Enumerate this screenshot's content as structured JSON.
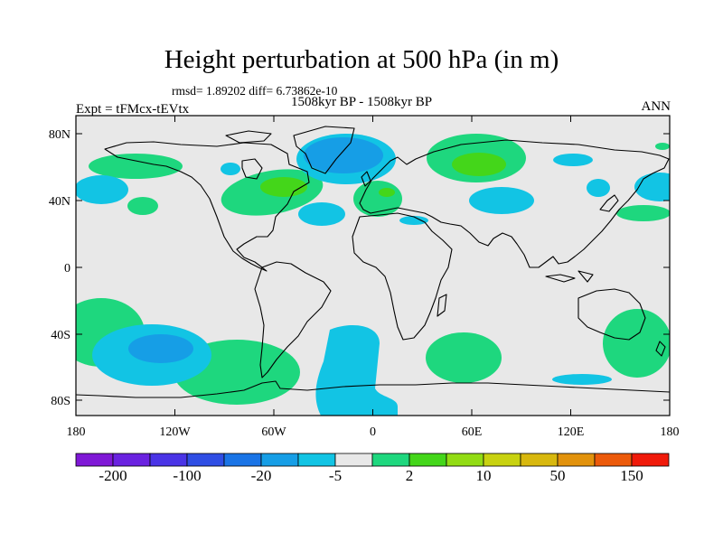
{
  "title": "Height perturbation at 500 hPa (in m)",
  "stats": "rmsd= 1.89202  diff= 6.73862e-10",
  "period": "1508kyr BP - 1508kyr BP",
  "experiment": "Expt = tFMcx-tEVtx",
  "season": "ANN",
  "axes": {
    "lat_ticks": [
      "80N",
      "40N",
      "0",
      "40S",
      "80S"
    ],
    "lon_ticks": [
      "180",
      "120W",
      "60W",
      "0",
      "60E",
      "120E",
      "180"
    ]
  },
  "colorbar": {
    "labels": [
      "-200",
      "-100",
      "-20",
      "-5",
      "2",
      "10",
      "50",
      "150"
    ],
    "colors": [
      "#7f18d6",
      "#6a22e0",
      "#4a34e6",
      "#2f4ee4",
      "#1a74e6",
      "#169ee6",
      "#12c4e4",
      "#e8e8e8",
      "#1ed77e",
      "#44d61a",
      "#92dc14",
      "#c8d210",
      "#d8b80e",
      "#e2920c",
      "#ec5a0a",
      "#f01a0a"
    ]
  },
  "colors": {
    "ocean": "#e8e8e8",
    "pos_light": "#1ed77e",
    "pos_mid": "#44d61a",
    "neg_light": "#12c4e4",
    "neg_mid": "#169ee6"
  }
}
